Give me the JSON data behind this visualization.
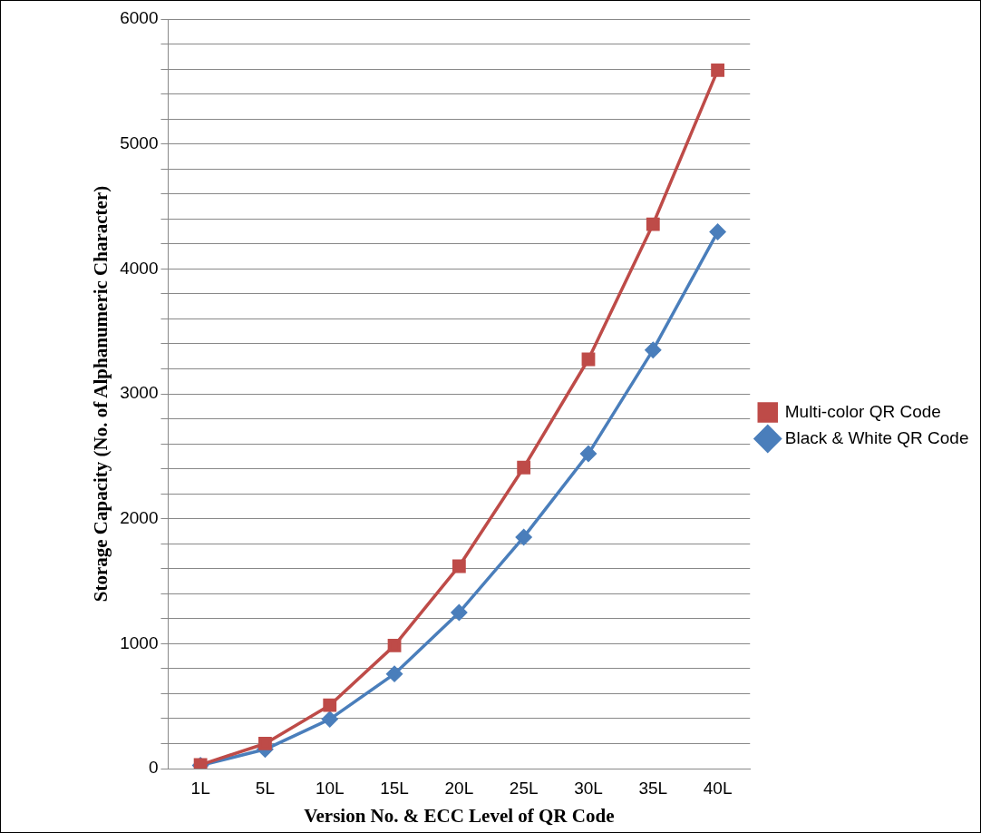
{
  "chart_data": {
    "type": "line",
    "xlabel": "Version No. & ECC Level of QR Code",
    "ylabel": "Storage Capacity (No. of Alphanumeric Character)",
    "categories": [
      "1L",
      "5L",
      "10L",
      "15L",
      "20L",
      "25L",
      "30L",
      "35L",
      "40L"
    ],
    "series": [
      {
        "name": "Black & White QR Code",
        "color": "#4a7ebb",
        "marker": "diamond",
        "values": [
          25,
          154,
          395,
          758,
          1249,
          1853,
          2520,
          3351,
          4296
        ]
      },
      {
        "name": "Multi-color QR Code",
        "color": "#be4b48",
        "marker": "square",
        "values": [
          30,
          200,
          507,
          985,
          1620,
          2410,
          3276,
          4358,
          5590
        ]
      }
    ],
    "ylim": [
      0,
      6000
    ],
    "yticks": [
      0,
      {
        "value": 200,
        "label": null
      },
      {
        "value": 400,
        "label": null
      },
      {
        "value": 600,
        "label": null
      },
      {
        "value": 800,
        "label": null
      },
      1000,
      {
        "value": 1200,
        "label": null
      },
      {
        "value": 1400,
        "label": null
      },
      {
        "value": 1600,
        "label": null
      },
      {
        "value": 1800,
        "label": null
      },
      2000,
      {
        "value": 2200,
        "label": null
      },
      {
        "value": 2400,
        "label": null
      },
      {
        "value": 2600,
        "label": null
      },
      {
        "value": 2800,
        "label": null
      },
      3000,
      {
        "value": 3200,
        "label": null
      },
      {
        "value": 3400,
        "label": null
      },
      {
        "value": 3600,
        "label": null
      },
      {
        "value": 3800,
        "label": null
      },
      4000,
      {
        "value": 4200,
        "label": null
      },
      {
        "value": 4400,
        "label": null
      },
      {
        "value": 4600,
        "label": null
      },
      {
        "value": 4800,
        "label": null
      },
      5000,
      {
        "value": 5200,
        "label": null
      },
      {
        "value": 5400,
        "label": null
      },
      {
        "value": 5600,
        "label": null
      },
      {
        "value": 5800,
        "label": null
      },
      6000
    ],
    "grid": "y",
    "legend": "right",
    "line_style": "solid"
  }
}
